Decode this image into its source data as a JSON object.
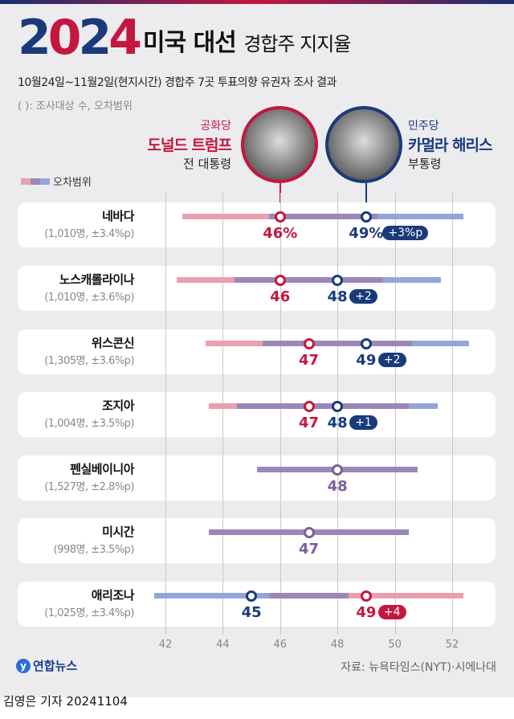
{
  "header": {
    "logo": "2024",
    "title": "미국 대선",
    "title_sub": "경합주 지지율",
    "subtitle": "10월24일~11월2일(현지시간) 경합주 7곳 투표의향 유권자 조사 결과",
    "note": "(   ): 조사대상 수, 오차범위"
  },
  "candidates": {
    "trump": {
      "party": "공화당",
      "name": "도널드 트럼프",
      "role": "전 대통령",
      "color": "#c4173f"
    },
    "harris": {
      "party": "민주당",
      "name": "카멀라 해리스",
      "role": "부통령",
      "color": "#1a3a7a"
    }
  },
  "legend": {
    "label": "오차범위"
  },
  "colors": {
    "trump_bar": "#e8a0b0",
    "harris_bar": "#94a6d8",
    "overlap_bar": "#9a88b8",
    "tie": "#7a5f9a"
  },
  "chart_data": {
    "type": "dot-range",
    "xlim": [
      42,
      52
    ],
    "xticks": [
      "42",
      "44",
      "46",
      "48",
      "50",
      "52"
    ],
    "grid": true,
    "rows": [
      {
        "state": "네바다",
        "meta": "(1,010명, ±3.4%p)",
        "trump": 46,
        "harris": 49,
        "moe": 3.4,
        "trump_label": "46%",
        "harris_label": "49%",
        "badge": "+3%p",
        "leader": "harris"
      },
      {
        "state": "노스캐롤라이나",
        "meta": "(1,010명, ±3.6%p)",
        "trump": 46,
        "harris": 48,
        "moe": 3.6,
        "trump_label": "46",
        "harris_label": "48",
        "badge": "+2",
        "leader": "harris"
      },
      {
        "state": "위스콘신",
        "meta": "(1,305명, ±3.6%p)",
        "trump": 47,
        "harris": 49,
        "moe": 3.6,
        "trump_label": "47",
        "harris_label": "49",
        "badge": "+2",
        "leader": "harris"
      },
      {
        "state": "조지아",
        "meta": "(1,004명, ±3.5%p)",
        "trump": 47,
        "harris": 48,
        "moe": 3.5,
        "trump_label": "47",
        "harris_label": "48",
        "badge": "+1",
        "leader": "harris"
      },
      {
        "state": "펜실베이니아",
        "meta": "(1,527명, ±2.8%p)",
        "trump": 48,
        "harris": 48,
        "moe": 2.8,
        "tie_label": "48",
        "leader": "tie"
      },
      {
        "state": "미시간",
        "meta": "(998명, ±3.5%p)",
        "trump": 47,
        "harris": 47,
        "moe": 3.5,
        "tie_label": "47",
        "leader": "tie"
      },
      {
        "state": "애리조나",
        "meta": "(1,025명, ±3.4%p)",
        "trump": 49,
        "harris": 45,
        "moe": 3.4,
        "trump_label": "49",
        "harris_label": "45",
        "badge": "+4",
        "leader": "trump"
      }
    ]
  },
  "footer": {
    "source": "자료: 뉴욕타임스(NYT)·시에나대",
    "agency": "연합뉴스",
    "credit": "김영은 기자  20241104"
  }
}
